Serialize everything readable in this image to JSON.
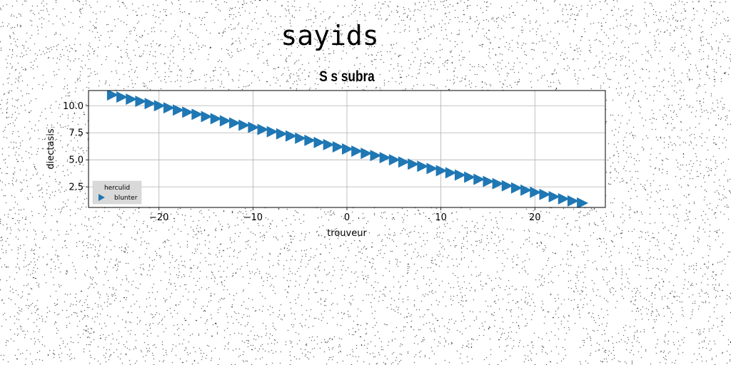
{
  "figure": {
    "suptitle": "sayids"
  },
  "chart_data": {
    "type": "scatter",
    "title": "S s subra",
    "xlabel": "trouveur",
    "ylabel": "diectasis",
    "xlim": [
      -27.5,
      27.5
    ],
    "ylim": [
      0.6,
      11.4
    ],
    "xticks": [
      -20,
      -10,
      0,
      10,
      20
    ],
    "xtick_labels": [
      "−20",
      "−10",
      "0",
      "10",
      "20"
    ],
    "yticks": [
      2.5,
      5.0,
      7.5,
      10.0
    ],
    "ytick_labels": [
      "2.5",
      "5.0",
      "7.5",
      "10.0"
    ],
    "grid": true,
    "legend": {
      "title": "herculid",
      "placement": "lower-left"
    },
    "series": [
      {
        "name": "blunter",
        "marker": "triangle-right",
        "color": "#1f77b4",
        "x": [
          -25.0,
          -24.0,
          -23.0,
          -22.0,
          -21.0,
          -20.0,
          -19.0,
          -18.0,
          -17.0,
          -16.0,
          -15.0,
          -14.0,
          -13.0,
          -12.0,
          -11.0,
          -10.0,
          -9.0,
          -8.0,
          -7.0,
          -6.0,
          -5.0,
          -4.0,
          -3.0,
          -2.0,
          -1.0,
          0.0,
          1.0,
          2.0,
          3.0,
          4.0,
          5.0,
          6.0,
          7.0,
          8.0,
          9.0,
          10.0,
          11.0,
          12.0,
          13.0,
          14.0,
          15.0,
          16.0,
          17.0,
          18.0,
          19.0,
          20.0,
          21.0,
          22.0,
          23.0,
          24.0,
          25.0
        ],
        "y": [
          11.0,
          10.8,
          10.6,
          10.4,
          10.2,
          10.0,
          9.8,
          9.6,
          9.4,
          9.2,
          9.0,
          8.8,
          8.6,
          8.4,
          8.2,
          8.0,
          7.8,
          7.6,
          7.4,
          7.2,
          7.0,
          6.8,
          6.6,
          6.4,
          6.2,
          6.0,
          5.8,
          5.6,
          5.4,
          5.2,
          5.0,
          4.8,
          4.6,
          4.4,
          4.2,
          4.0,
          3.8,
          3.6,
          3.4,
          3.2,
          3.0,
          2.8,
          2.6,
          2.4,
          2.2,
          2.0,
          1.8,
          1.6,
          1.4,
          1.2,
          1.0
        ]
      }
    ]
  }
}
